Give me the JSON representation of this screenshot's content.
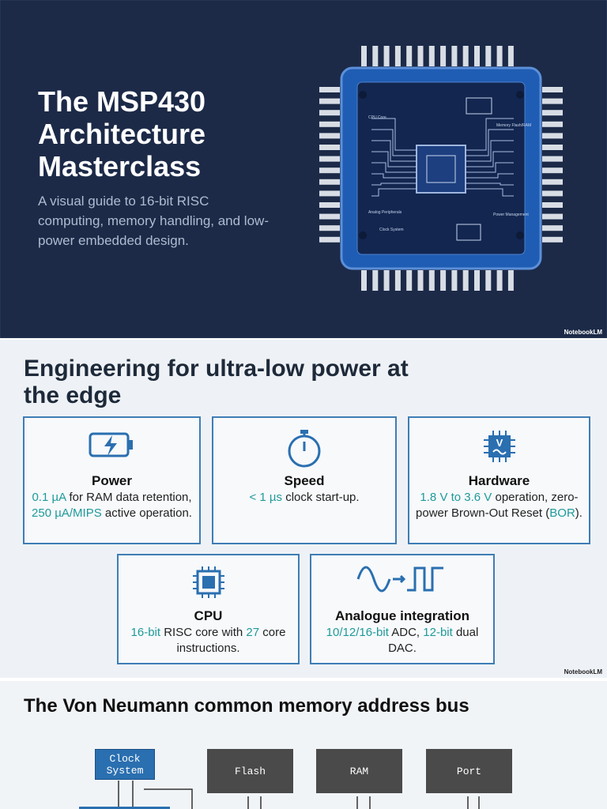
{
  "slide1": {
    "title": "The MSP430 Architecture Masterclass",
    "subtitle": "A visual guide to 16-bit RISC computing, memory handling, and low-power embedded design.",
    "chip_labels": [
      "CPU Core",
      "Memory Flash/RAM",
      "Analog Peripherals",
      "Clock System",
      "Power Management"
    ],
    "watermark": "NotebookLM"
  },
  "slide2": {
    "title": "Engineering for ultra-low power at the edge",
    "cards": [
      {
        "title": "Power",
        "description": [
          {
            "text": "0.1 µA",
            "highlight": true
          },
          {
            "text": " for RAM data retention, ",
            "highlight": false
          },
          {
            "text": "250 µA/MIPS",
            "highlight": true
          },
          {
            "text": " active operation.",
            "highlight": false
          }
        ]
      },
      {
        "title": "Speed",
        "description": [
          {
            "text": "< 1 µs",
            "highlight": true
          },
          {
            "text": " clock start-up.",
            "highlight": false
          }
        ]
      },
      {
        "title": "Hardware",
        "description": [
          {
            "text": "1.8 V to 3.6 V",
            "highlight": true
          },
          {
            "text": " operation, zero-power Brown-Out Reset (",
            "highlight": false
          },
          {
            "text": "BOR",
            "highlight": true
          },
          {
            "text": ").",
            "highlight": false
          }
        ]
      },
      {
        "title": "CPU",
        "description": [
          {
            "text": "16-bit",
            "highlight": true
          },
          {
            "text": " RISC core with ",
            "highlight": false
          },
          {
            "text": "27",
            "highlight": true
          },
          {
            "text": " core instructions.",
            "highlight": false
          }
        ]
      },
      {
        "title": "Analogue integration",
        "description": [
          {
            "text": "10/12/16-bit",
            "highlight": true
          },
          {
            "text": " ADC, ",
            "highlight": false
          },
          {
            "text": "12-bit",
            "highlight": true
          },
          {
            "text": " dual DAC.",
            "highlight": false
          }
        ]
      }
    ],
    "watermark": "NotebookLM"
  },
  "slide3": {
    "title": "The Von Neumann common memory address bus",
    "blocks": [
      "Clock System",
      "Flash",
      "RAM",
      "Port"
    ]
  }
}
